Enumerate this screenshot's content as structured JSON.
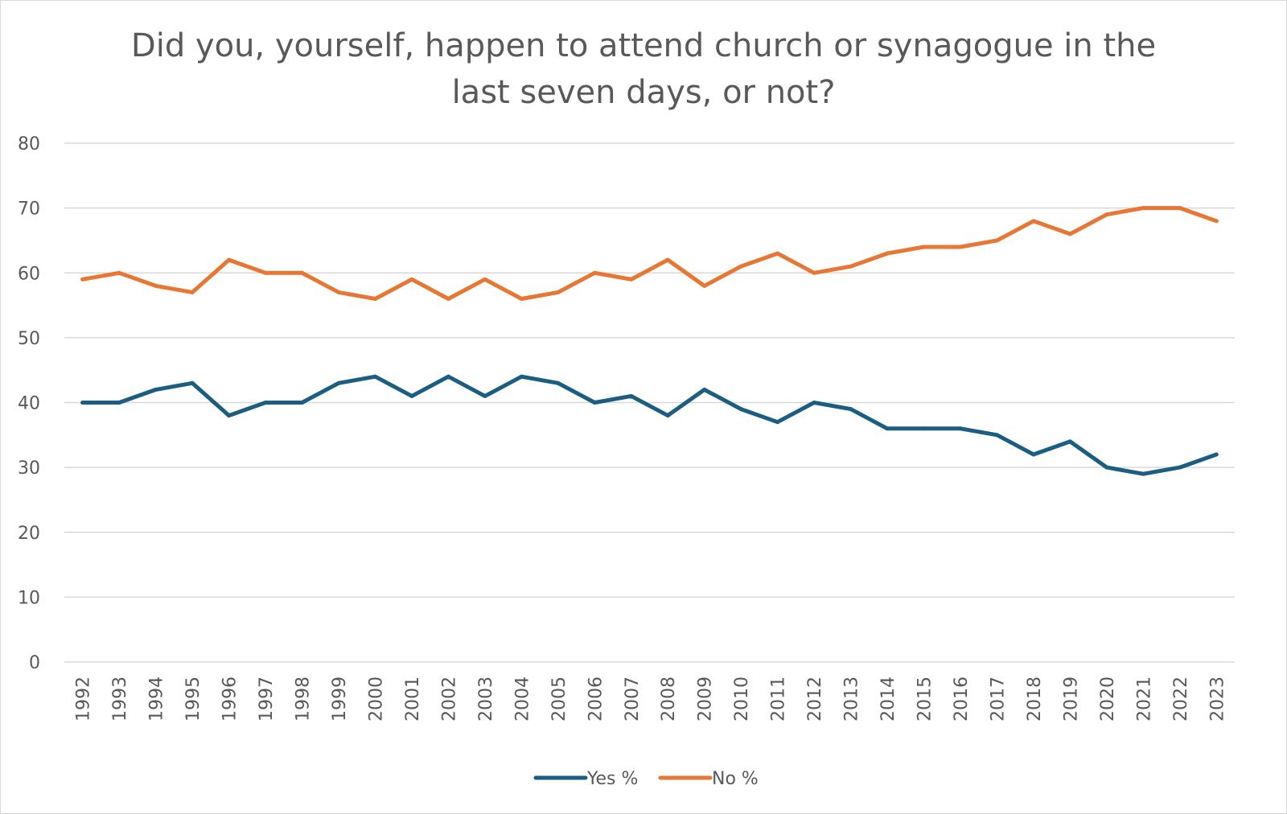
{
  "chart_data": {
    "type": "line",
    "title": "Did you, yourself, happen to attend church or synagogue in the last seven days, or not?",
    "title_lines": [
      "Did you, yourself, happen to attend church or synagogue in the",
      "last seven days, or not?"
    ],
    "xlabel": "",
    "ylabel": "",
    "ylim": [
      0,
      80
    ],
    "yticks": [
      0,
      10,
      20,
      30,
      40,
      50,
      60,
      70,
      80
    ],
    "grid": true,
    "legend_position": "bottom",
    "categories": [
      "1992",
      "1993",
      "1994",
      "1995",
      "1996",
      "1997",
      "1998",
      "1999",
      "2000",
      "2001",
      "2002",
      "2003",
      "2004",
      "2005",
      "2006",
      "2007",
      "2008",
      "2009",
      "2010",
      "2011",
      "2012",
      "2013",
      "2014",
      "2015",
      "2016",
      "2017",
      "2018",
      "2019",
      "2020",
      "2021",
      "2022",
      "2023"
    ],
    "series": [
      {
        "name": "Yes %",
        "color": "#1b5e82",
        "values": [
          40,
          40,
          42,
          43,
          38,
          40,
          40,
          43,
          44,
          41,
          44,
          41,
          44,
          43,
          40,
          41,
          38,
          42,
          39,
          37,
          40,
          39,
          36,
          36,
          36,
          35,
          32,
          34,
          30,
          29,
          30,
          32
        ]
      },
      {
        "name": "No %",
        "color": "#e87634",
        "values": [
          59,
          60,
          58,
          57,
          62,
          60,
          60,
          57,
          56,
          59,
          56,
          59,
          56,
          57,
          60,
          59,
          62,
          58,
          61,
          63,
          60,
          61,
          63,
          64,
          64,
          65,
          68,
          66,
          69,
          70,
          70,
          68
        ]
      }
    ]
  }
}
